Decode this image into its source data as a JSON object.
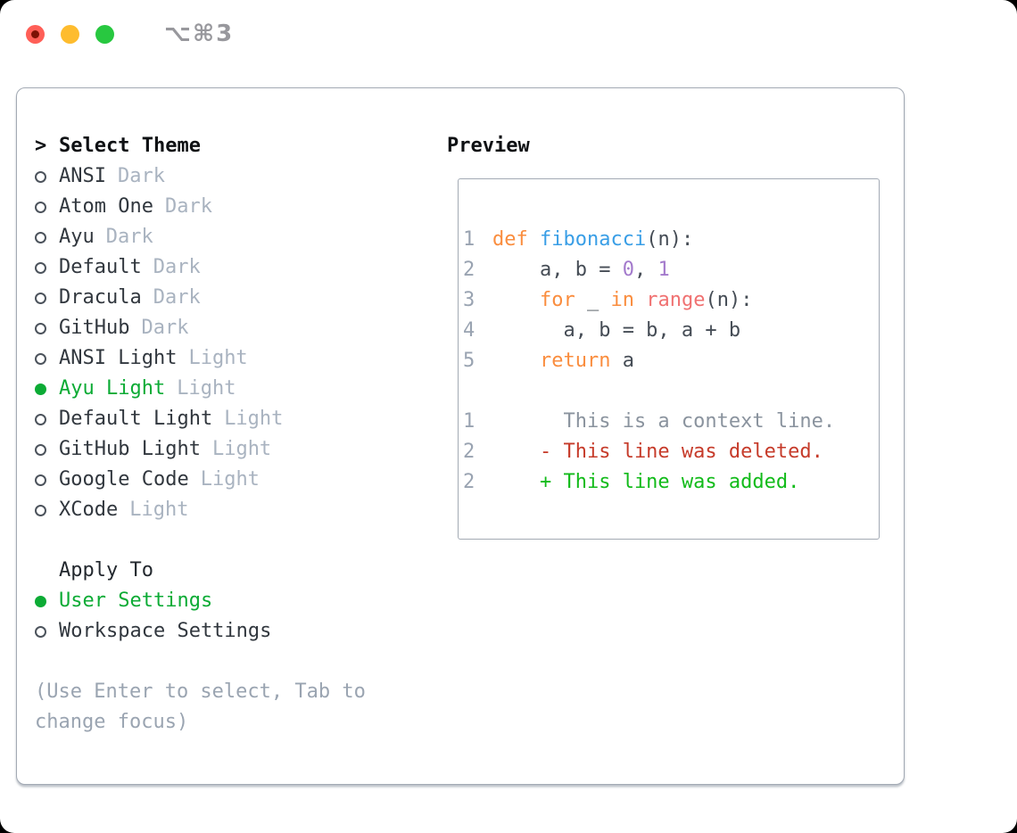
{
  "window": {
    "shortcut": "⌥⌘3",
    "traffic_lights": [
      "close-button",
      "minimize-button",
      "zoom-button"
    ]
  },
  "colors": {
    "traffic_red": "#ff5f57",
    "traffic_yellow": "#febc2e",
    "traffic_green": "#28c840",
    "selection_green": "#0cab35",
    "keyword_orange": "#fa8d3e",
    "function_blue": "#399ee6",
    "number_purple": "#a37acc",
    "builtin_coral": "#f07171",
    "code_fg": "#454c55",
    "muted_gray": "#99a3b1",
    "context_gray": "#8a939e",
    "diff_red": "#c63b2a",
    "diff_green": "#12bb1a"
  },
  "theme_picker": {
    "prompt": ">",
    "title": "Select Theme",
    "items": [
      {
        "name": "ANSI",
        "variant": "Dark",
        "selected": false
      },
      {
        "name": "Atom One",
        "variant": "Dark",
        "selected": false
      },
      {
        "name": "Ayu",
        "variant": "Dark",
        "selected": false
      },
      {
        "name": "Default",
        "variant": "Dark",
        "selected": false
      },
      {
        "name": "Dracula",
        "variant": "Dark",
        "selected": false
      },
      {
        "name": "GitHub",
        "variant": "Dark",
        "selected": false
      },
      {
        "name": "ANSI Light",
        "variant": "Light",
        "selected": false
      },
      {
        "name": "Ayu Light",
        "variant": "Light",
        "selected": true
      },
      {
        "name": "Default Light",
        "variant": "Light",
        "selected": false
      },
      {
        "name": "GitHub Light",
        "variant": "Light",
        "selected": false
      },
      {
        "name": "Google Code",
        "variant": "Light",
        "selected": false
      },
      {
        "name": "XCode",
        "variant": "Light",
        "selected": false
      }
    ],
    "apply_to": {
      "title": "Apply To",
      "options": [
        {
          "label": "User Settings",
          "selected": true
        },
        {
          "label": "Workspace Settings",
          "selected": false
        }
      ]
    },
    "hint": "(Use Enter to select, Tab to change focus)"
  },
  "preview": {
    "title": "Preview",
    "lines": [
      {
        "num": "1",
        "tokens": [
          {
            "text": "def ",
            "style": "keyword"
          },
          {
            "text": "fibonacci",
            "style": "function"
          },
          {
            "text": "(n):",
            "style": "plain"
          }
        ]
      },
      {
        "num": "2",
        "tokens": [
          {
            "text": "    a, b = ",
            "style": "plain"
          },
          {
            "text": "0",
            "style": "number"
          },
          {
            "text": ", ",
            "style": "plain"
          },
          {
            "text": "1",
            "style": "number"
          }
        ]
      },
      {
        "num": "3",
        "tokens": [
          {
            "text": "    ",
            "style": "plain"
          },
          {
            "text": "for",
            "style": "keyword"
          },
          {
            "text": " _ ",
            "style": "plain"
          },
          {
            "text": "in",
            "style": "keyword"
          },
          {
            "text": " ",
            "style": "plain"
          },
          {
            "text": "range",
            "style": "builtin"
          },
          {
            "text": "(n):",
            "style": "plain"
          }
        ]
      },
      {
        "num": "4",
        "tokens": [
          {
            "text": "      a, b = b, a + b",
            "style": "plain"
          }
        ]
      },
      {
        "num": "5",
        "tokens": [
          {
            "text": "    ",
            "style": "plain"
          },
          {
            "text": "return",
            "style": "keyword"
          },
          {
            "text": " a",
            "style": "plain"
          }
        ]
      },
      {
        "num": "",
        "tokens": []
      },
      {
        "num": "1",
        "tokens": [
          {
            "text": "      This is a context line.",
            "style": "context"
          }
        ]
      },
      {
        "num": "2",
        "tokens": [
          {
            "text": "    - This line was deleted.",
            "style": "deleted"
          }
        ]
      },
      {
        "num": "2",
        "tokens": [
          {
            "text": "    + This line was added.",
            "style": "added"
          }
        ]
      }
    ]
  }
}
